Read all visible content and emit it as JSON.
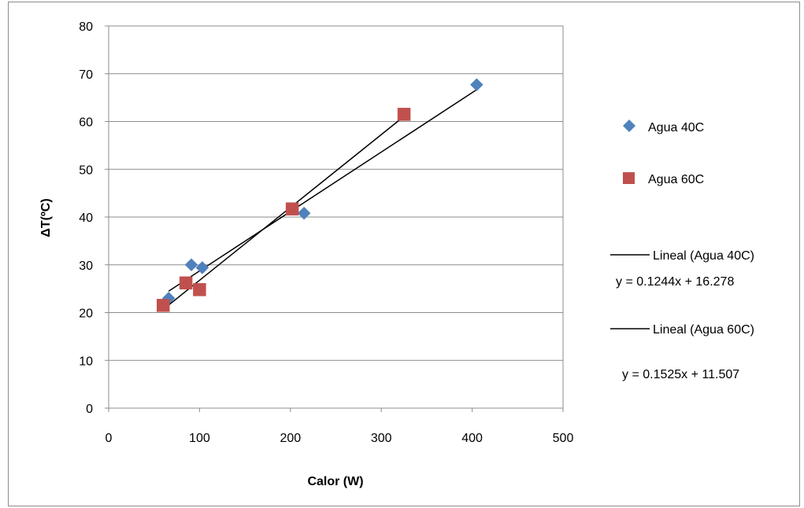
{
  "chart_data": {
    "type": "scatter",
    "title": "",
    "xlabel": "Calor (W)",
    "ylabel": "ΔT(ºC)",
    "xlim": [
      0,
      500
    ],
    "ylim": [
      0,
      80
    ],
    "xticks": [
      0,
      100,
      200,
      300,
      400,
      500
    ],
    "yticks": [
      0,
      10,
      20,
      30,
      40,
      50,
      60,
      70,
      80
    ],
    "grid": "horizontal",
    "legend_position": "right",
    "series": [
      {
        "name": "Agua 40C",
        "marker": "diamond",
        "color": "#4f81bd",
        "x": [
          66,
          91,
          103,
          215,
          405
        ],
        "y": [
          23.0,
          30.0,
          29.4,
          40.8,
          67.7
        ]
      },
      {
        "name": "Agua 60C",
        "marker": "square",
        "color": "#c0504d",
        "x": [
          60,
          85,
          100,
          202,
          325
        ],
        "y": [
          21.5,
          26.2,
          24.8,
          41.7,
          61.5
        ]
      }
    ],
    "trendlines": [
      {
        "name": "Lineal (Agua 40C)",
        "equation": "y = 0.1244x + 16.278",
        "slope": 0.1244,
        "intercept": 16.278,
        "x_range": [
          66,
          405
        ],
        "color": "#000000"
      },
      {
        "name": "Lineal (Agua 60C)",
        "equation": "y = 0.1525x + 11.507",
        "slope": 0.1525,
        "intercept": 11.507,
        "x_range": [
          60,
          325
        ],
        "color": "#000000"
      }
    ]
  }
}
